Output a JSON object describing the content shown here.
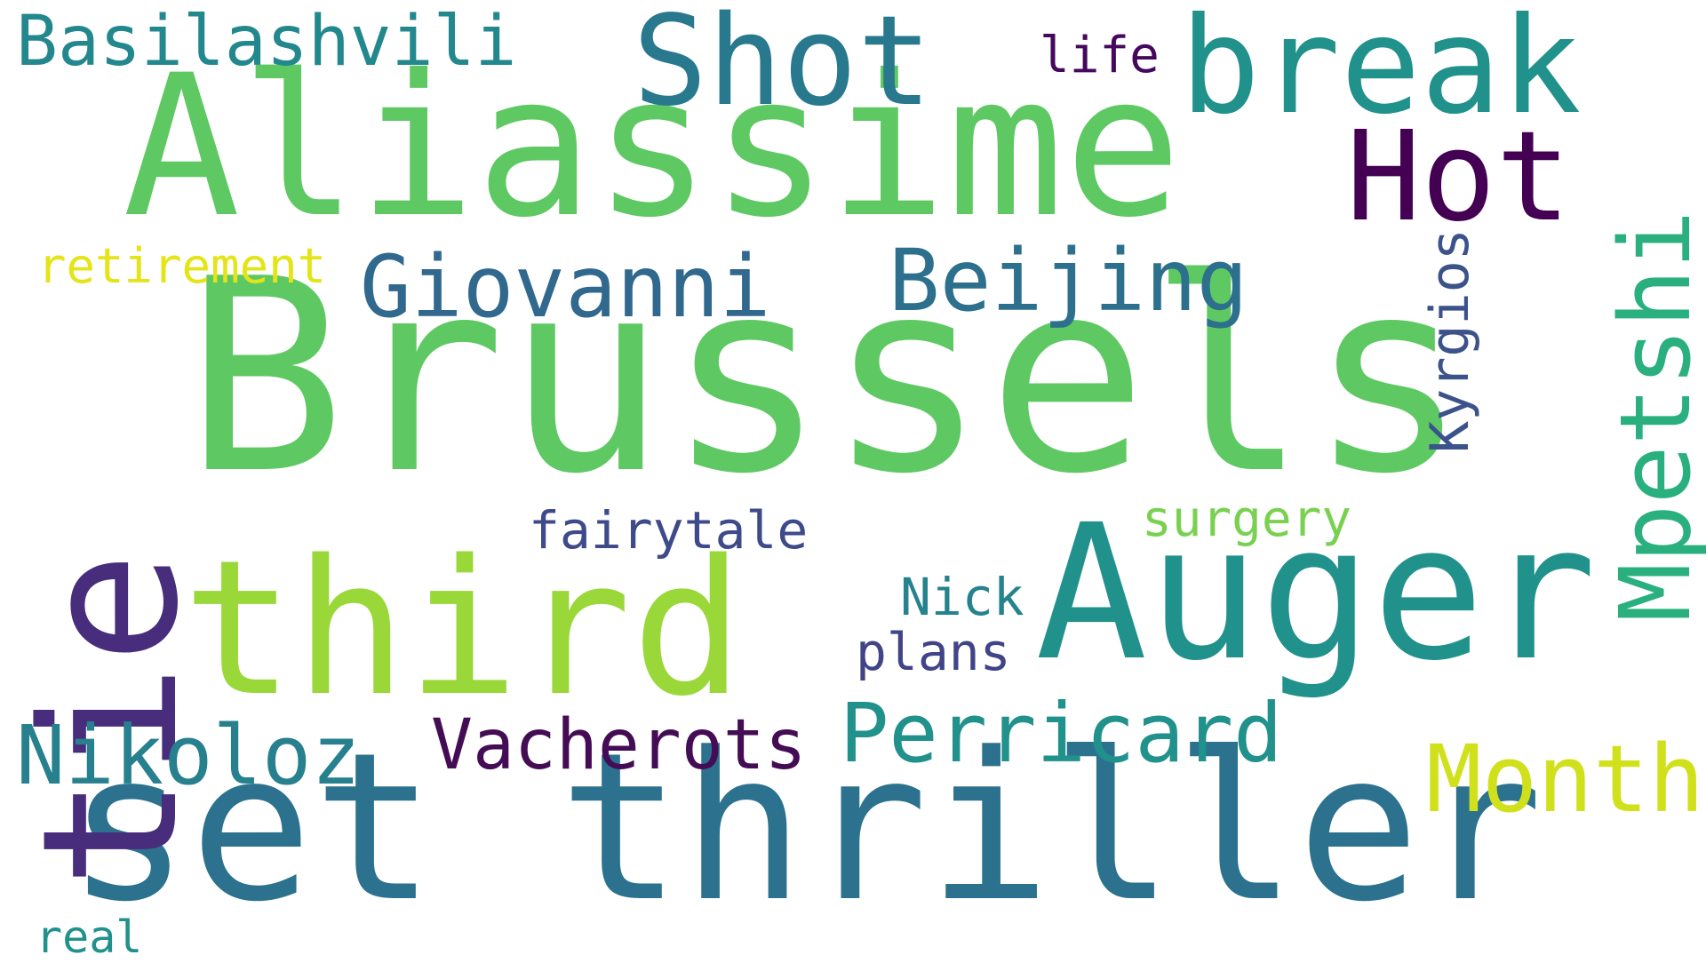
{
  "word_cloud": {
    "words": [
      {
        "text": "Brussels",
        "color": "#5ec962"
      },
      {
        "text": "Aliassime",
        "color": "#5ec962"
      },
      {
        "text": "set thriller",
        "color": "#2c728e"
      },
      {
        "text": "Auger",
        "color": "#21918c"
      },
      {
        "text": "third",
        "color": "#9ad83a"
      },
      {
        "text": "tie",
        "color": "#472d7b"
      },
      {
        "text": "Shot",
        "color": "#28798e"
      },
      {
        "text": "break",
        "color": "#21918c"
      },
      {
        "text": "Hot",
        "color": "#440154"
      },
      {
        "text": "Mpetshi",
        "color": "#2ab07f"
      },
      {
        "text": "Basilashvili",
        "color": "#23888e"
      },
      {
        "text": "Giovanni",
        "color": "#31688e"
      },
      {
        "text": "Beijing",
        "color": "#2d708e"
      },
      {
        "text": "Perricard",
        "color": "#21918c"
      },
      {
        "text": "Nikoloz",
        "color": "#27808e"
      },
      {
        "text": "Vacherots",
        "color": "#440c54"
      },
      {
        "text": "Month",
        "color": "#d0e11c"
      },
      {
        "text": "Kyrgios",
        "color": "#3b528b"
      },
      {
        "text": "fairytale",
        "color": "#3e4a89"
      },
      {
        "text": "surgery",
        "color": "#7ad151"
      },
      {
        "text": "Nick",
        "color": "#25838e"
      },
      {
        "text": "plans",
        "color": "#414487"
      },
      {
        "text": "life",
        "color": "#46085c"
      },
      {
        "text": "retirement",
        "color": "#e4e419"
      },
      {
        "text": "real",
        "color": "#21918c"
      }
    ]
  }
}
